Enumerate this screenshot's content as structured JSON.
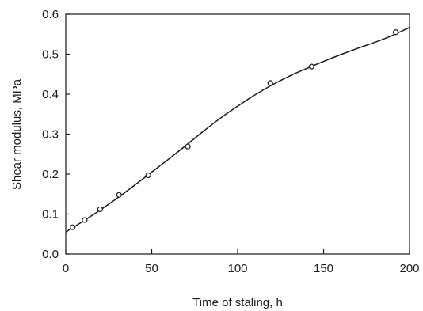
{
  "chart_data": {
    "type": "scatter",
    "title": "",
    "xlabel": "Time of staling, h",
    "ylabel": "Shear modulus, MPa",
    "xlim": [
      0,
      200
    ],
    "ylim": [
      0.0,
      0.6
    ],
    "x_ticks": [
      "0",
      "50",
      "100",
      "150",
      "200"
    ],
    "y_ticks": [
      "0.0",
      "0.1",
      "0.2",
      "0.3",
      "0.4",
      "0.5",
      "0.6"
    ],
    "grid": false,
    "legend": "none",
    "series": [
      {
        "x": [
          4,
          11,
          20,
          31,
          48,
          71,
          119,
          143,
          192
        ],
        "y": [
          0.067,
          0.085,
          0.112,
          0.148,
          0.197,
          0.269,
          0.428,
          0.469,
          0.555
        ]
      }
    ],
    "fit_curve": {
      "x": [
        0,
        10,
        20,
        30,
        40,
        50,
        60,
        70,
        80,
        90,
        100,
        110,
        120,
        130,
        140,
        150,
        160,
        170,
        180,
        190,
        200
      ],
      "y": [
        0.055,
        0.082,
        0.11,
        0.14,
        0.172,
        0.205,
        0.238,
        0.272,
        0.307,
        0.34,
        0.37,
        0.398,
        0.423,
        0.445,
        0.464,
        0.482,
        0.499,
        0.515,
        0.53,
        0.547,
        0.567
      ]
    },
    "colors": {
      "axis": "#1a1a1a",
      "line": "#1a1a1a",
      "marker": "#1a1a1a"
    }
  }
}
